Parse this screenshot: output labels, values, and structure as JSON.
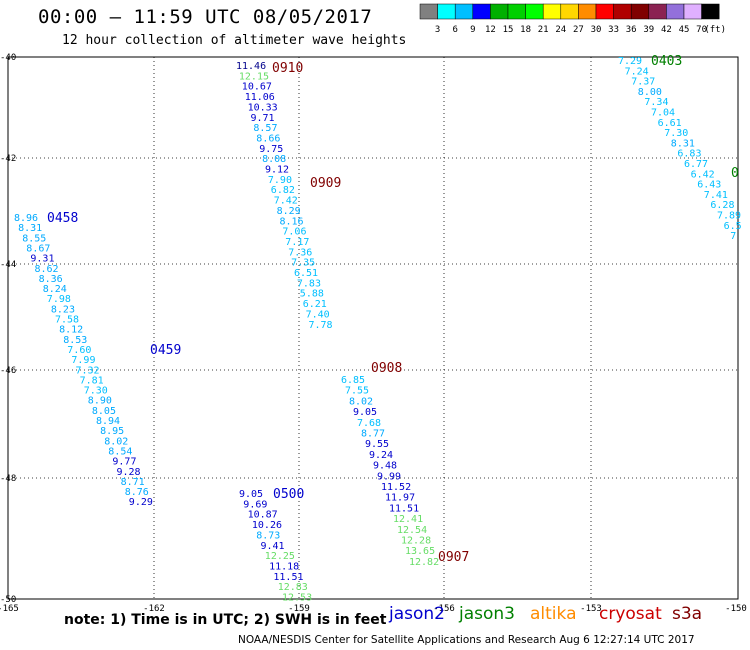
{
  "header": {
    "title": "00:00 – 11:59 UTC 08/05/2017",
    "subtitle": "12 hour collection of altimeter wave heights"
  },
  "colorbar": {
    "colors": [
      "#808080",
      "#00ffff",
      "#00bfff",
      "#0000ff",
      "#00b000",
      "#00d000",
      "#00ff00",
      "#ffff00",
      "#ffd700",
      "#ff8c00",
      "#ff0000",
      "#b00000",
      "#800000",
      "#8b2252",
      "#9370db",
      "#e0b0ff",
      "#000000"
    ],
    "labels": [
      "3",
      "6",
      "9",
      "12",
      "15",
      "18",
      "21",
      "24",
      "27",
      "30",
      "33",
      "36",
      "39",
      "42",
      "45",
      "70"
    ],
    "unit": "(ft)"
  },
  "axes": {
    "y_labels": [
      "-40",
      "-42",
      "-44",
      "-46",
      "-48",
      "-50"
    ],
    "x_labels": [
      "-165",
      "-162",
      "-159",
      "-156",
      "-153",
      "-150"
    ]
  },
  "tracks": [
    {
      "time": "0910",
      "color": "#800000",
      "values": [
        {
          "v": "11.46",
          "c": "#00008b"
        },
        {
          "v": "12.15",
          "c": "#66dd66"
        },
        {
          "v": "10.67",
          "c": "#0000cd"
        },
        {
          "v": "11.06",
          "c": "#0000cd"
        },
        {
          "v": "10.33",
          "c": "#0000cd"
        },
        {
          "v": "9.71",
          "c": "#0000cd"
        },
        {
          "v": "8.57",
          "c": "#00aaff"
        },
        {
          "v": "8.66",
          "c": "#00aaff"
        },
        {
          "v": "9.75",
          "c": "#0000cd"
        },
        {
          "v": "8.08",
          "c": "#00aaff"
        },
        {
          "v": "9.12",
          "c": "#0000cd"
        },
        {
          "v": "7.90",
          "c": "#00bfff"
        },
        {
          "v": "6.82",
          "c": "#00bfff"
        },
        {
          "v": "7.42",
          "c": "#00bfff"
        },
        {
          "v": "8.29",
          "c": "#00aaff"
        },
        {
          "v": "8.16",
          "c": "#00aaff"
        },
        {
          "v": "7.06",
          "c": "#00bfff"
        },
        {
          "v": "7.17",
          "c": "#00bfff"
        },
        {
          "v": "7.36",
          "c": "#00bfff"
        },
        {
          "v": "7.35",
          "c": "#00bfff"
        },
        {
          "v": "6.51",
          "c": "#00bfff"
        },
        {
          "v": "7.83",
          "c": "#00bfff"
        },
        {
          "v": "5.88",
          "c": "#00bfff"
        },
        {
          "v": "6.21",
          "c": "#00bfff"
        },
        {
          "v": "7.40",
          "c": "#00bfff"
        },
        {
          "v": "7.78",
          "c": "#00bfff"
        }
      ]
    },
    {
      "time": "0909",
      "color": "#800000",
      "values": []
    },
    {
      "time": "0908",
      "color": "#800000",
      "values": [
        {
          "v": "6.85",
          "c": "#00bfff"
        },
        {
          "v": "7.55",
          "c": "#00bfff"
        },
        {
          "v": "8.02",
          "c": "#00aaff"
        },
        {
          "v": "9.05",
          "c": "#0000cd"
        },
        {
          "v": "7.68",
          "c": "#00bfff"
        },
        {
          "v": "8.77",
          "c": "#00aaff"
        },
        {
          "v": "9.55",
          "c": "#0000cd"
        },
        {
          "v": "9.24",
          "c": "#0000cd"
        },
        {
          "v": "9.48",
          "c": "#0000cd"
        },
        {
          "v": "9.99",
          "c": "#0000cd"
        },
        {
          "v": "11.52",
          "c": "#0000cd"
        },
        {
          "v": "11.97",
          "c": "#0000cd"
        },
        {
          "v": "11.51",
          "c": "#0000cd"
        },
        {
          "v": "12.41",
          "c": "#66dd66"
        },
        {
          "v": "12.54",
          "c": "#66dd66"
        },
        {
          "v": "12.28",
          "c": "#66dd66"
        },
        {
          "v": "13.65",
          "c": "#66dd66"
        },
        {
          "v": "12.82",
          "c": "#66dd66"
        }
      ]
    },
    {
      "time": "0907",
      "color": "#800000",
      "values": []
    },
    {
      "time": "0458",
      "color": "#0000cd",
      "values": [
        {
          "v": "8.96",
          "c": "#00aaff"
        },
        {
          "v": "8.31",
          "c": "#00aaff"
        },
        {
          "v": "8.55",
          "c": "#00aaff"
        },
        {
          "v": "8.67",
          "c": "#00aaff"
        },
        {
          "v": "9.31",
          "c": "#0000cd"
        },
        {
          "v": "8.62",
          "c": "#00aaff"
        },
        {
          "v": "8.36",
          "c": "#00aaff"
        },
        {
          "v": "8.24",
          "c": "#00aaff"
        },
        {
          "v": "7.98",
          "c": "#00bfff"
        },
        {
          "v": "8.23",
          "c": "#00aaff"
        },
        {
          "v": "7.58",
          "c": "#00bfff"
        },
        {
          "v": "8.12",
          "c": "#00aaff"
        },
        {
          "v": "8.53",
          "c": "#00aaff"
        },
        {
          "v": "7.60",
          "c": "#00bfff"
        },
        {
          "v": "7.99",
          "c": "#00bfff"
        },
        {
          "v": "7.32",
          "c": "#00bfff"
        },
        {
          "v": "7.81",
          "c": "#00bfff"
        },
        {
          "v": "7.30",
          "c": "#00bfff"
        },
        {
          "v": "8.90",
          "c": "#00aaff"
        },
        {
          "v": "8.05",
          "c": "#00aaff"
        },
        {
          "v": "8.94",
          "c": "#00aaff"
        },
        {
          "v": "8.95",
          "c": "#00aaff"
        },
        {
          "v": "8.02",
          "c": "#00aaff"
        },
        {
          "v": "8.54",
          "c": "#00aaff"
        },
        {
          "v": "9.77",
          "c": "#0000cd"
        },
        {
          "v": "9.28",
          "c": "#0000cd"
        },
        {
          "v": "8.71",
          "c": "#00aaff"
        },
        {
          "v": "8.76",
          "c": "#00aaff"
        },
        {
          "v": "9.29",
          "c": "#0000cd"
        }
      ]
    },
    {
      "time": "0459",
      "color": "#0000cd",
      "values": []
    },
    {
      "time": "0500",
      "color": "#0000cd",
      "values": [
        {
          "v": "9.05",
          "c": "#0000cd"
        },
        {
          "v": "9.69",
          "c": "#0000cd"
        },
        {
          "v": "10.87",
          "c": "#0000cd"
        },
        {
          "v": "10.26",
          "c": "#0000cd"
        },
        {
          "v": "8.73",
          "c": "#00aaff"
        },
        {
          "v": "9.41",
          "c": "#0000cd"
        },
        {
          "v": "12.25",
          "c": "#66dd66"
        },
        {
          "v": "11.18",
          "c": "#0000cd"
        },
        {
          "v": "11.51",
          "c": "#0000cd"
        },
        {
          "v": "12.83",
          "c": "#66dd66"
        },
        {
          "v": "12.53",
          "c": "#66dd66"
        }
      ]
    },
    {
      "time": "0403",
      "color": "#008000",
      "values": [
        {
          "v": "7.29",
          "c": "#00bfff"
        },
        {
          "v": "7.24",
          "c": "#00bfff"
        },
        {
          "v": "7.37",
          "c": "#00bfff"
        },
        {
          "v": "8.00",
          "c": "#00aaff"
        },
        {
          "v": "7.34",
          "c": "#00bfff"
        },
        {
          "v": "7.04",
          "c": "#00bfff"
        },
        {
          "v": "6.61",
          "c": "#00bfff"
        },
        {
          "v": "7.30",
          "c": "#00bfff"
        },
        {
          "v": "8.31",
          "c": "#00aaff"
        },
        {
          "v": "6.83",
          "c": "#00bfff"
        },
        {
          "v": "6.77",
          "c": "#00bfff"
        },
        {
          "v": "6.42",
          "c": "#00bfff"
        },
        {
          "v": "6.43",
          "c": "#00bfff"
        },
        {
          "v": "7.41",
          "c": "#00bfff"
        },
        {
          "v": "6.28",
          "c": "#00bfff"
        },
        {
          "v": "7.89",
          "c": "#00bfff"
        },
        {
          "v": "6.5",
          "c": "#00bfff"
        },
        {
          "v": "7",
          "c": "#00bfff"
        }
      ]
    },
    {
      "time": "0",
      "color": "#008000",
      "values": []
    }
  ],
  "note": "note: 1) Time is in UTC; 2) SWH is in feet",
  "legend": [
    {
      "label": "jason2",
      "color": "#0000cd"
    },
    {
      "label": "jason3",
      "color": "#008000"
    },
    {
      "label": "altika",
      "color": "#ff8c00"
    },
    {
      "label": "cryosat",
      "color": "#cc0000"
    },
    {
      "label": "s3a",
      "color": "#800000"
    }
  ],
  "footer": "NOAA/NESDIS Center for Satellite Applications and Research   Aug  6 12:27:14 UTC 2017"
}
